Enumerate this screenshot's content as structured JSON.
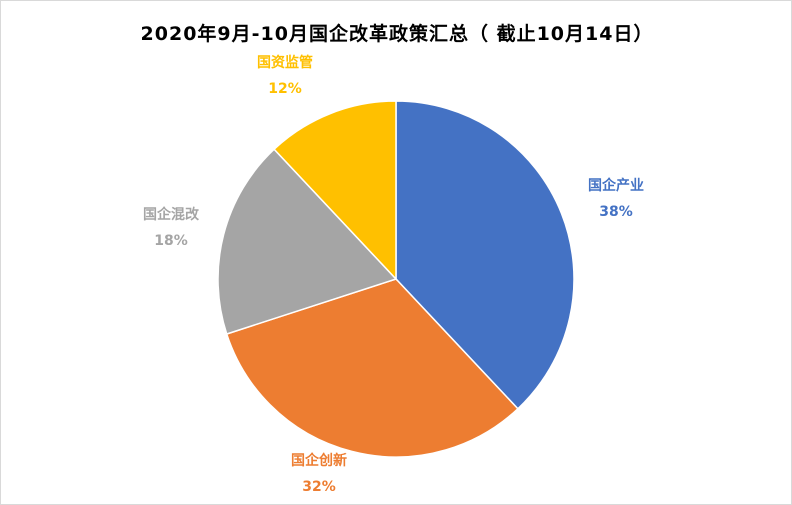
{
  "chart_data": {
    "type": "pie",
    "title": "2020年9月-10月国企改革政策汇总（ 截止10月14日）",
    "slices": [
      {
        "label": "国企产业",
        "value": 38,
        "value_label": "38%",
        "color": "#4472C4"
      },
      {
        "label": "国企创新",
        "value": 32,
        "value_label": "32%",
        "color": "#ED7D31"
      },
      {
        "label": "国企混改",
        "value": 18,
        "value_label": "18%",
        "color": "#A5A5A5"
      },
      {
        "label": "国资监管",
        "value": 12,
        "value_label": "12%",
        "color": "#FFC000"
      }
    ],
    "start_angle_deg": 0,
    "direction": "clockwise",
    "legend": "none"
  }
}
